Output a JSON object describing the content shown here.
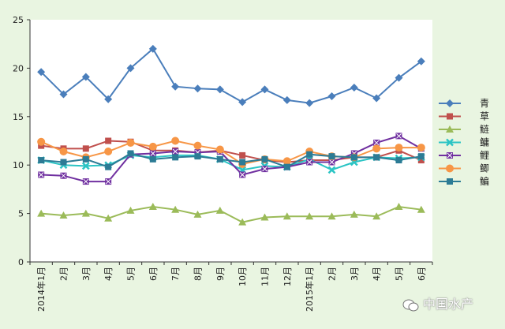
{
  "chart_data": {
    "type": "line",
    "title": "",
    "xlabel": "",
    "ylabel": "",
    "ylim": [
      0,
      25
    ],
    "yticks": [
      0,
      5,
      10,
      15,
      20,
      25
    ],
    "grid": false,
    "legend_position": "right",
    "categories": [
      "2014年1月",
      "2月",
      "3月",
      "4月",
      "5月",
      "6月",
      "7月",
      "8月",
      "9月",
      "10月",
      "11月",
      "12月",
      "2015年1月",
      "2月",
      "3月",
      "4月",
      "5月",
      "6月"
    ],
    "series": [
      {
        "name": "青",
        "color": "#4a7ebb",
        "marker": "diamond",
        "values": [
          19.6,
          17.3,
          19.1,
          16.8,
          20.0,
          22.0,
          18.1,
          17.9,
          17.8,
          16.5,
          17.8,
          16.7,
          16.4,
          17.1,
          18.0,
          16.9,
          19.0,
          20.7
        ]
      },
      {
        "name": "草",
        "color": "#c0504d",
        "marker": "square",
        "values": [
          12.0,
          11.7,
          11.7,
          12.5,
          12.4,
          11.5,
          11.5,
          11.3,
          11.5,
          11.0,
          10.5,
          10.3,
          10.5,
          10.5,
          10.8,
          10.8,
          11.5,
          10.5
        ]
      },
      {
        "name": "鲢",
        "color": "#9bbb59",
        "marker": "triangle",
        "values": [
          5.0,
          4.8,
          5.0,
          4.5,
          5.3,
          5.7,
          5.4,
          4.9,
          5.3,
          4.1,
          4.6,
          4.7,
          4.7,
          4.7,
          4.9,
          4.7,
          5.7,
          5.4
        ]
      },
      {
        "name": "鳙",
        "color": "#2bc4c4",
        "marker": "x",
        "values": [
          10.5,
          10.0,
          9.9,
          10.0,
          11.0,
          10.8,
          11.0,
          11.0,
          10.6,
          9.5,
          9.9,
          9.8,
          10.6,
          9.5,
          10.3,
          10.8,
          10.7,
          10.8
        ]
      },
      {
        "name": "鲤",
        "color": "#7030a0",
        "marker": "xsquare",
        "values": [
          9.0,
          8.9,
          8.3,
          8.3,
          11.1,
          11.2,
          11.4,
          11.3,
          11.4,
          9.0,
          9.6,
          9.8,
          10.3,
          10.3,
          11.2,
          12.3,
          13.0,
          11.7
        ]
      },
      {
        "name": "鲫",
        "color": "#f79646",
        "marker": "circle",
        "values": [
          12.4,
          11.4,
          10.8,
          11.4,
          12.3,
          11.9,
          12.5,
          12.0,
          11.6,
          10.1,
          10.6,
          10.4,
          11.4,
          10.9,
          10.8,
          11.7,
          11.8,
          11.8
        ]
      },
      {
        "name": "鳊",
        "color": "#2c7b95",
        "marker": "square",
        "values": [
          10.5,
          10.3,
          10.6,
          9.8,
          11.2,
          10.6,
          10.8,
          10.9,
          10.6,
          10.3,
          10.6,
          9.8,
          11.1,
          10.9,
          10.8,
          10.8,
          10.5,
          10.9
        ]
      }
    ]
  },
  "watermark": {
    "text": "中国水产"
  }
}
